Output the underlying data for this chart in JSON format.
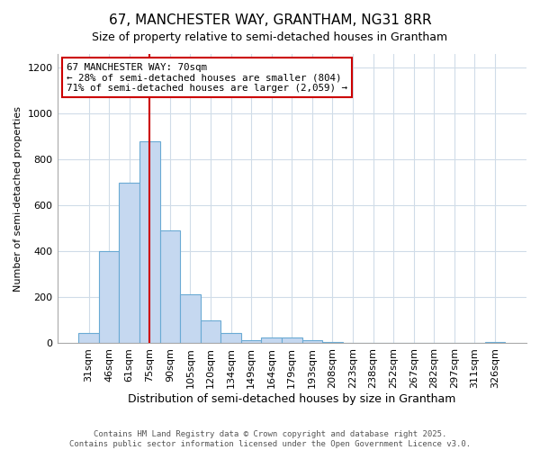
{
  "title": "67, MANCHESTER WAY, GRANTHAM, NG31 8RR",
  "subtitle": "Size of property relative to semi-detached houses in Grantham",
  "xlabel": "Distribution of semi-detached houses by size in Grantham",
  "ylabel": "Number of semi-detached properties",
  "bar_labels": [
    "31sqm",
    "46sqm",
    "61sqm",
    "75sqm",
    "90sqm",
    "105sqm",
    "120sqm",
    "134sqm",
    "149sqm",
    "164sqm",
    "179sqm",
    "193sqm",
    "208sqm",
    "223sqm",
    "238sqm",
    "252sqm",
    "267sqm",
    "282sqm",
    "297sqm",
    "311sqm",
    "326sqm"
  ],
  "bar_values": [
    45,
    400,
    700,
    880,
    490,
    215,
    100,
    45,
    15,
    25,
    25,
    15,
    5,
    3,
    2,
    2,
    1,
    1,
    0,
    0,
    5
  ],
  "bar_color": "#c5d8f0",
  "bar_edgecolor": "#6aaad4",
  "property_line_x": 3.0,
  "annotation_title": "67 MANCHESTER WAY: 70sqm",
  "annotation_line1": "← 28% of semi-detached houses are smaller (804)",
  "annotation_line2": "71% of semi-detached houses are larger (2,059) →",
  "annotation_box_color": "#cc0000",
  "ylim": [
    0,
    1260
  ],
  "yticks": [
    0,
    200,
    400,
    600,
    800,
    1000,
    1200
  ],
  "footer_line1": "Contains HM Land Registry data © Crown copyright and database right 2025.",
  "footer_line2": "Contains public sector information licensed under the Open Government Licence v3.0.",
  "background_color": "#ffffff",
  "plot_background": "#ffffff",
  "grid_color": "#d0dce8",
  "title_fontsize": 11,
  "subtitle_fontsize": 9
}
